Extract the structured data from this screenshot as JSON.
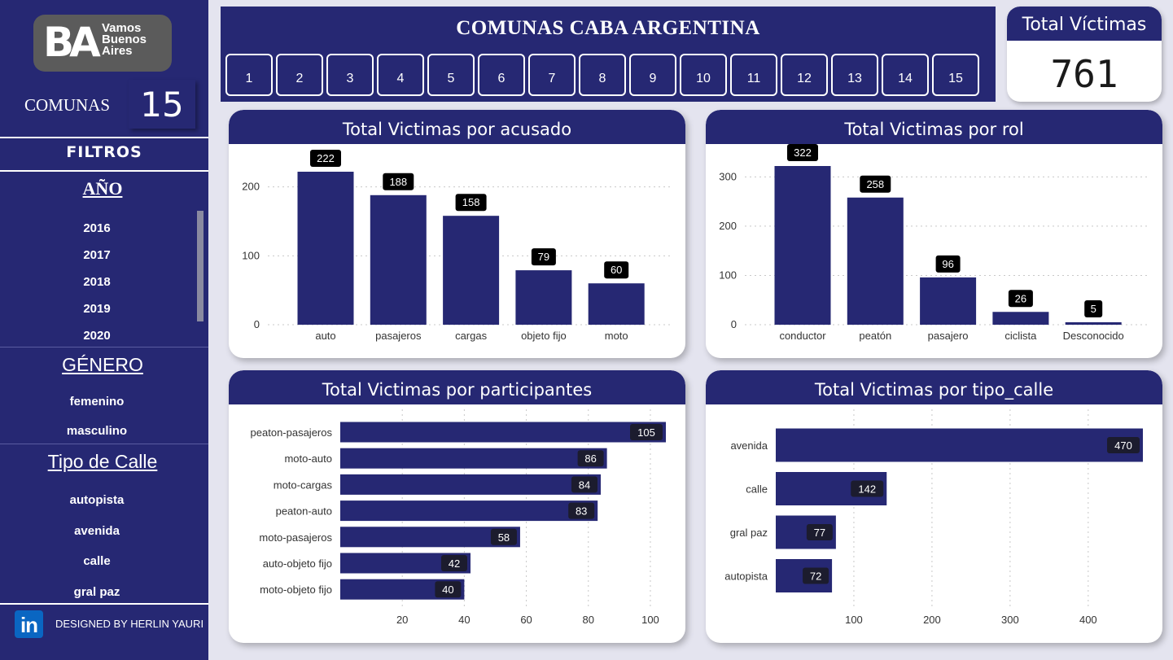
{
  "sidebar": {
    "logo": {
      "letters": "BA",
      "line1": "Vamos",
      "line2": "Buenos",
      "line3": "Aires"
    },
    "comunas_label": "COMUNAS",
    "comunas_count": "15",
    "filters_title": "FILTROS",
    "year_title": "AÑO",
    "years": [
      "2016",
      "2017",
      "2018",
      "2019",
      "2020"
    ],
    "gender_title": "GÉNERO",
    "genders": [
      "femenino",
      "masculino"
    ],
    "street_title": "Tipo de Calle",
    "streets": [
      "autopista",
      "avenida",
      "calle",
      "gral paz"
    ],
    "linkedin_icon": "in",
    "designed_by": "DESIGNED BY HERLIN YAURI"
  },
  "header": {
    "title": "COMUNAS CABA ARGENTINA",
    "comunas": [
      "1",
      "2",
      "3",
      "4",
      "5",
      "6",
      "7",
      "8",
      "9",
      "10",
      "11",
      "12",
      "13",
      "14",
      "15"
    ]
  },
  "kpi": {
    "title": "Total Víctimas",
    "value": "761"
  },
  "colors": {
    "primary": "#262873",
    "label_bg": "#000000",
    "background": "#e4e4ef"
  },
  "charts": {
    "acusado": {
      "title": "Total Victimas por acusado"
    },
    "rol": {
      "title": "Total Victimas por rol"
    },
    "participantes": {
      "title": "Total Victimas por participantes"
    },
    "tipo_calle": {
      "title": "Total Victimas por tipo_calle"
    }
  },
  "chart_data": [
    {
      "type": "bar",
      "title": "Total Victimas por acusado",
      "categories": [
        "auto",
        "pasajeros",
        "cargas",
        "objeto fijo",
        "moto"
      ],
      "values": [
        222,
        188,
        158,
        79,
        60
      ],
      "yticks": [
        0,
        100,
        200
      ],
      "ylim": [
        0,
        222
      ],
      "grid": true
    },
    {
      "type": "bar",
      "title": "Total Victimas por rol",
      "categories": [
        "conductor",
        "peatón",
        "pasajero",
        "ciclista",
        "Desconocido"
      ],
      "values": [
        322,
        258,
        96,
        26,
        5
      ],
      "yticks": [
        0,
        100,
        200,
        300
      ],
      "ylim": [
        0,
        322
      ],
      "grid": true
    },
    {
      "type": "bar",
      "orientation": "horizontal",
      "title": "Total Victimas por participantes",
      "categories": [
        "peaton-pasajeros",
        "moto-auto",
        "moto-cargas",
        "peaton-auto",
        "moto-pasajeros",
        "auto-objeto fijo",
        "moto-objeto fijo"
      ],
      "values": [
        105,
        86,
        84,
        83,
        58,
        42,
        40
      ],
      "xticks": [
        20,
        40,
        60,
        80,
        100
      ],
      "xlim": [
        0,
        105
      ],
      "grid": true
    },
    {
      "type": "bar",
      "orientation": "horizontal",
      "title": "Total Victimas por tipo_calle",
      "categories": [
        "avenida",
        "calle",
        "gral paz",
        "autopista"
      ],
      "values": [
        470,
        142,
        77,
        72
      ],
      "xticks": [
        100,
        200,
        300,
        400
      ],
      "xlim": [
        0,
        470
      ],
      "grid": true
    }
  ]
}
